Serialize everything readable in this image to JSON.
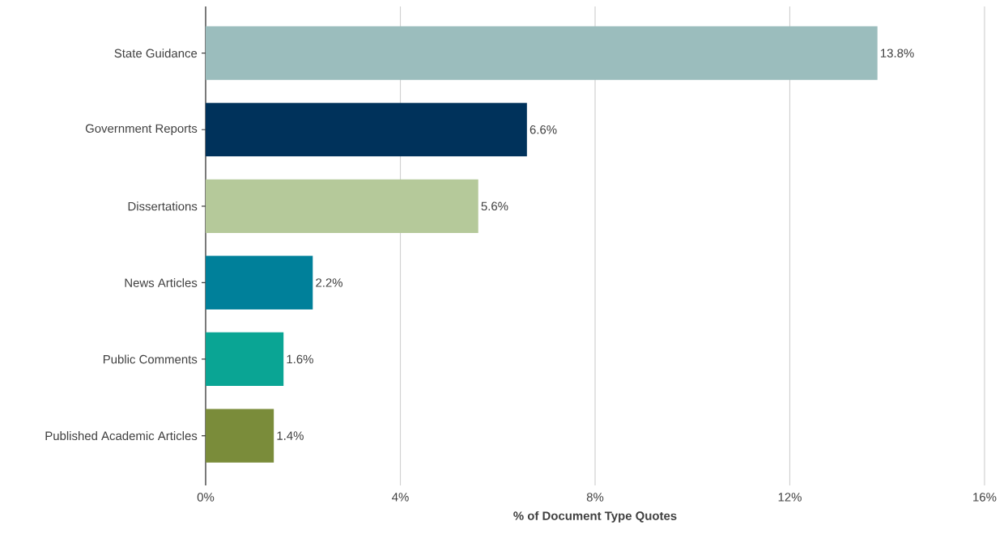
{
  "chart_data": {
    "type": "bar",
    "orientation": "horizontal",
    "xlabel": "% of Document Type Quotes",
    "categories": [
      "State Guidance",
      "Government Reports",
      "Dissertations",
      "News Articles",
      "Public Comments",
      "Published Academic Articles"
    ],
    "values": [
      13.8,
      6.6,
      5.6,
      2.2,
      1.6,
      1.4
    ],
    "value_labels": [
      "13.8%",
      "6.6%",
      "5.6%",
      "2.2%",
      "1.6%",
      "1.4%"
    ],
    "colors": [
      "#9bbdbd",
      "#00325b",
      "#b5c99a",
      "#00809a",
      "#0aa594",
      "#7a8c3a"
    ],
    "xlim": [
      0,
      16
    ],
    "xticks": [
      {
        "value": 0,
        "label": "0%"
      },
      {
        "value": 4,
        "label": "4%"
      },
      {
        "value": 8,
        "label": "8%"
      },
      {
        "value": 12,
        "label": "12%"
      },
      {
        "value": 16,
        "label": "16%"
      }
    ],
    "grid": "x"
  }
}
